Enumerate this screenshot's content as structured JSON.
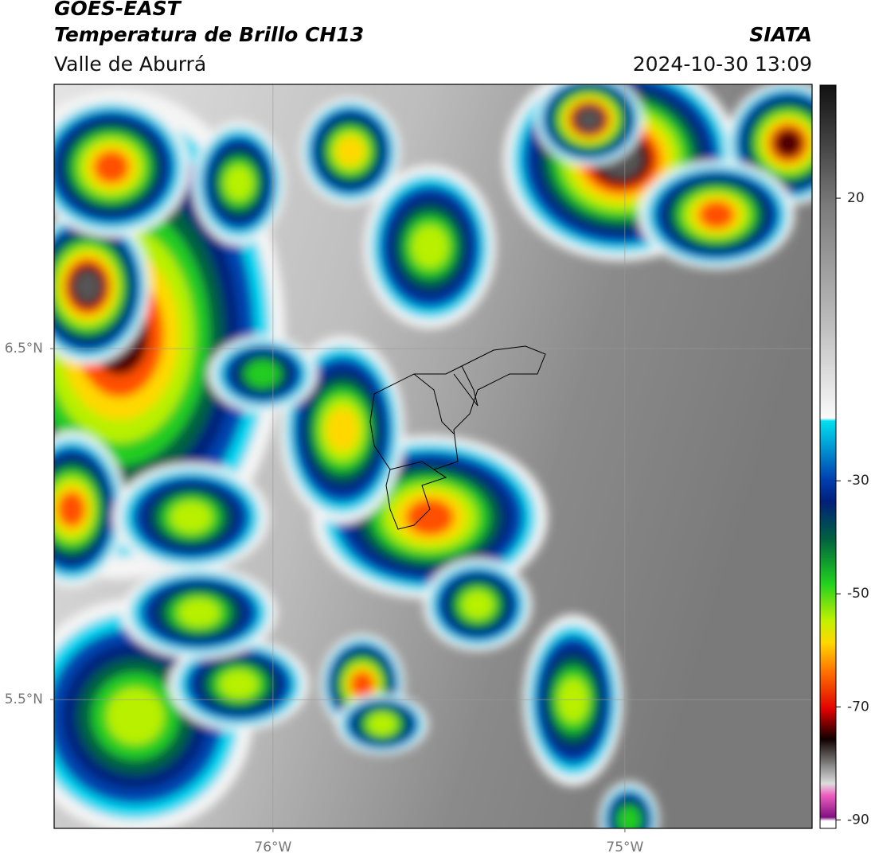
{
  "header": {
    "title": "GOES-EAST",
    "subtitle": "Temperatura de Brillo CH13",
    "region": "Valle de Aburrá",
    "source": "SIATA",
    "datetime": "2024-10-30 13:09"
  },
  "map": {
    "xlim": [
      -76.622,
      -74.468
    ],
    "ylim": [
      5.133,
      7.253
    ],
    "xticks": [
      {
        "value": -76,
        "label": "76°W"
      },
      {
        "value": -75,
        "label": "75°W"
      }
    ],
    "yticks": [
      {
        "value": 6.5,
        "label": "6.5°N"
      },
      {
        "value": 5.5,
        "label": "5.5°N"
      }
    ],
    "grid": true
  },
  "colorbar": {
    "lim": [
      -91.5,
      40
    ],
    "ticks": [
      20,
      -30,
      -50,
      -70,
      -90
    ]
  }
}
